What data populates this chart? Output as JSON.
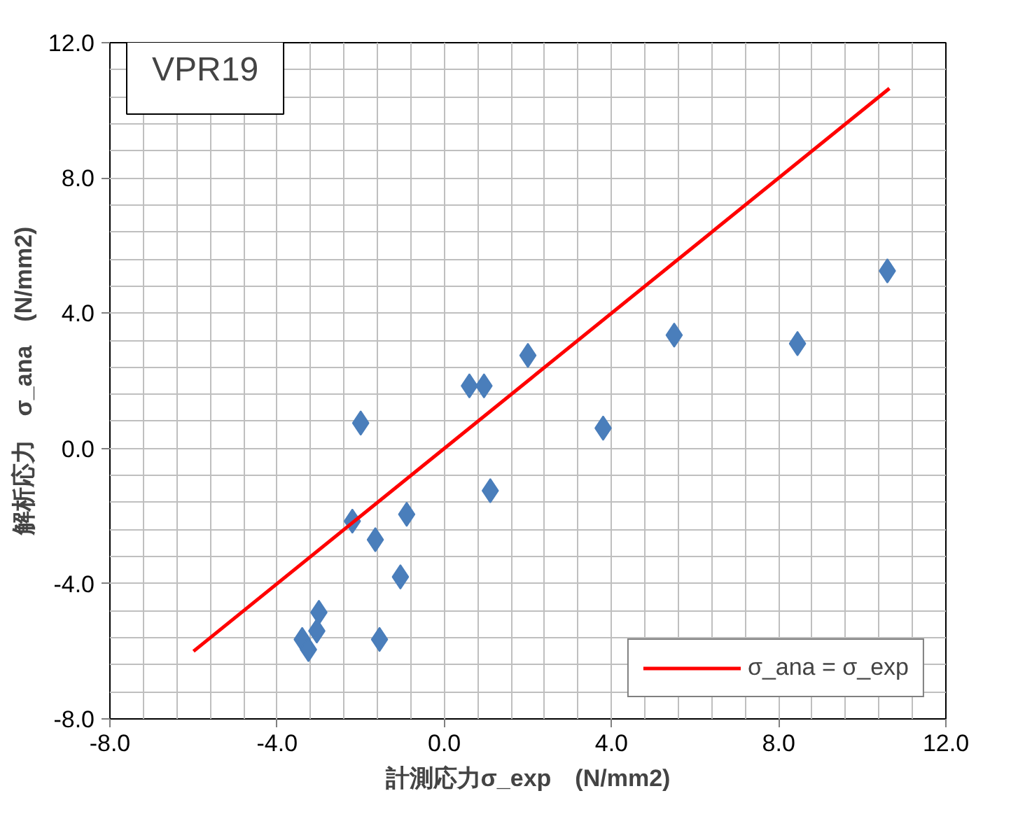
{
  "chart_data": {
    "type": "scatter",
    "title": "VPR19",
    "xlabel": "計測応力σ_exp　(N/mm2)",
    "ylabel": "解析応力　σ_ana　(N/mm2)",
    "xlim": [
      -8,
      12
    ],
    "ylim": [
      -8,
      12
    ],
    "xticks": [
      {
        "value": -8,
        "label": "-8.0"
      },
      {
        "value": -4,
        "label": "-4.0"
      },
      {
        "value": 0,
        "label": "0.0"
      },
      {
        "value": 4,
        "label": "4.0"
      },
      {
        "value": 8,
        "label": "8.0"
      },
      {
        "value": 12,
        "label": "12.0"
      }
    ],
    "yticks": [
      {
        "value": -8,
        "label": "-8.0"
      },
      {
        "value": -4,
        "label": "-4.0"
      },
      {
        "value": 0,
        "label": "0.0"
      },
      {
        "value": 4,
        "label": "4.0"
      },
      {
        "value": 8,
        "label": "8.0"
      },
      {
        "value": 12,
        "label": "12.0"
      }
    ],
    "grid": true,
    "legend": "bottom right",
    "series": [
      {
        "marker": "diamond",
        "color": "#4a7ebb",
        "x": [
          0.6,
          0.95,
          2.0,
          3.8,
          5.5,
          8.45,
          10.6,
          -2.0,
          1.1,
          -0.9,
          -2.2,
          -1.65,
          -1.05,
          -3.0,
          -3.05,
          -3.4,
          -3.25,
          -1.55
        ],
        "values": [
          1.85,
          1.85,
          2.75,
          0.6,
          3.35,
          3.1,
          5.25,
          0.75,
          -1.25,
          -1.95,
          -2.15,
          -2.7,
          -3.8,
          -4.85,
          -5.4,
          -5.65,
          -5.95,
          -5.65
        ]
      },
      {
        "type": "line",
        "name": "σ_ana = σ_exp",
        "color": "#ff0000",
        "x": [
          -6.0,
          10.65
        ],
        "values": [
          -6.0,
          10.65
        ]
      }
    ]
  }
}
